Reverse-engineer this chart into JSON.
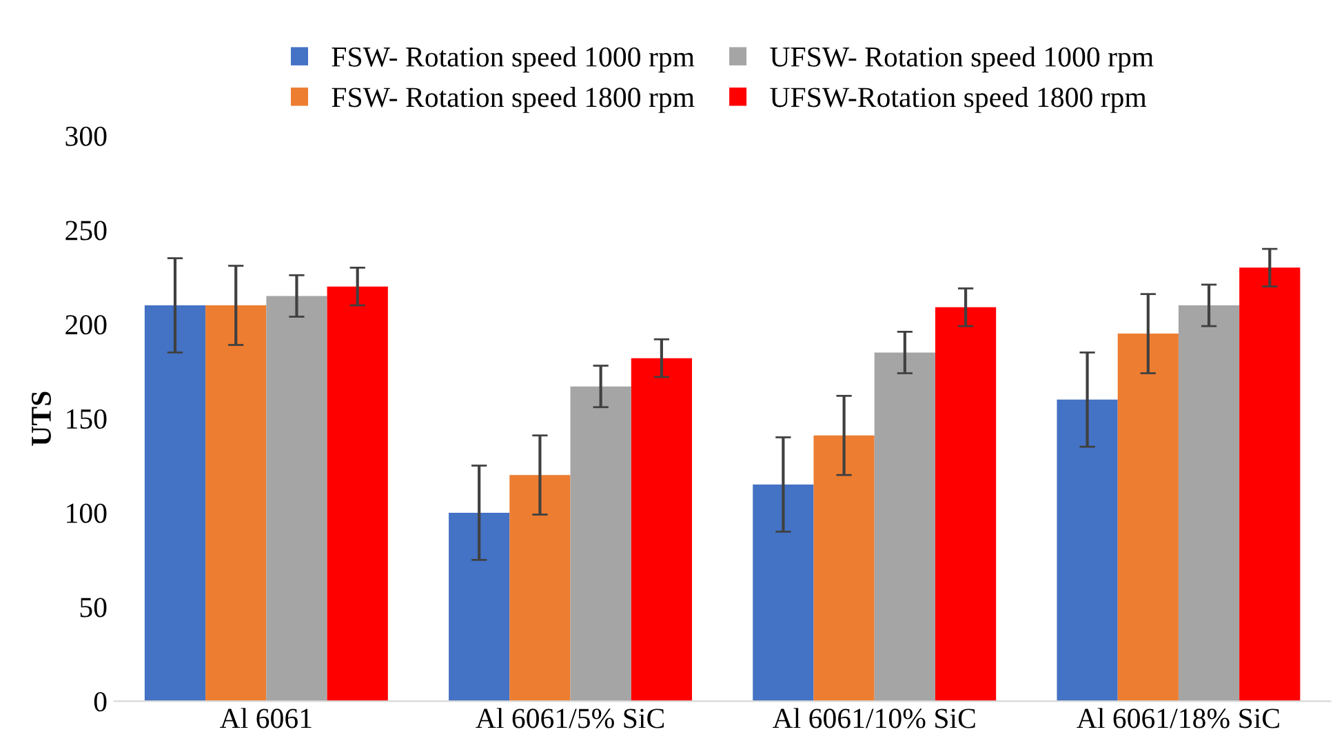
{
  "chart_data": {
    "type": "bar",
    "ylabel": "UTS",
    "categories": [
      "Al 6061",
      "Al 6061/5% SiC",
      "Al 6061/10% SiC",
      "Al 6061/18% SiC"
    ],
    "series": [
      {
        "name": "FSW- Rotation speed 1000 rpm",
        "color": "#4472c4",
        "values": [
          210,
          100,
          115,
          160
        ],
        "errors": [
          25,
          25,
          25,
          25
        ]
      },
      {
        "name": "FSW- Rotation speed 1800 rpm",
        "color": "#ed7d31",
        "values": [
          210,
          120,
          141,
          195
        ],
        "errors": [
          21,
          21,
          21,
          21
        ]
      },
      {
        "name": "UFSW- Rotation speed 1000 rpm",
        "color": "#a5a5a5",
        "values": [
          215,
          167,
          185,
          210
        ],
        "errors": [
          11,
          11,
          11,
          11
        ]
      },
      {
        "name": "UFSW-Rotation speed 1800 rpm",
        "color": "#ff0000",
        "values": [
          220,
          182,
          209,
          230
        ],
        "errors": [
          10,
          10,
          10,
          10
        ]
      }
    ],
    "ylim": [
      0,
      300
    ],
    "yticks": [
      0,
      50,
      100,
      150,
      200,
      250,
      300
    ],
    "legend": "top",
    "grid": false
  }
}
